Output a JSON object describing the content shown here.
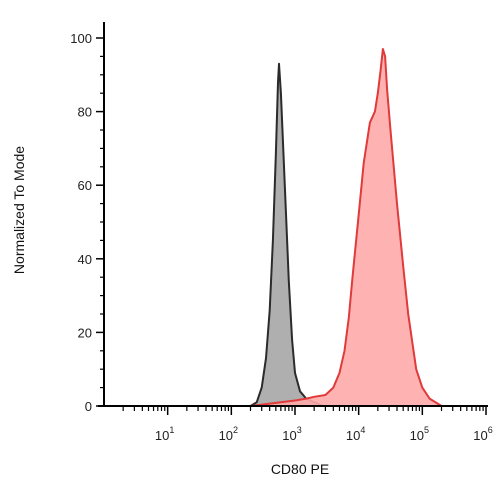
{
  "chart_data": {
    "type": "area",
    "title": "",
    "xlabel": "CD80 PE",
    "ylabel": "Normalized To Mode",
    "x_scale": "log",
    "xlim": [
      1,
      1000000
    ],
    "ylim": [
      0,
      100
    ],
    "x_ticks": [
      {
        "base": "10",
        "exp": "1",
        "value": 10
      },
      {
        "base": "10",
        "exp": "2",
        "value": 100
      },
      {
        "base": "10",
        "exp": "3",
        "value": 1000
      },
      {
        "base": "10",
        "exp": "4",
        "value": 10000
      },
      {
        "base": "10",
        "exp": "5",
        "value": 100000
      },
      {
        "base": "10",
        "exp": "6",
        "value": 1000000
      }
    ],
    "y_ticks": [
      {
        "label": "0",
        "value": 0
      },
      {
        "label": "20",
        "value": 20
      },
      {
        "label": "40",
        "value": 40
      },
      {
        "label": "60",
        "value": 60
      },
      {
        "label": "80",
        "value": 80
      },
      {
        "label": "100",
        "value": 100
      }
    ],
    "grid": false,
    "legend": "none",
    "series": [
      {
        "fill": "#a6a6a6",
        "stroke": "#2b2b2b",
        "points": [
          [
            200,
            0
          ],
          [
            250,
            1
          ],
          [
            300,
            5
          ],
          [
            350,
            13
          ],
          [
            400,
            26
          ],
          [
            450,
            45
          ],
          [
            500,
            68
          ],
          [
            540,
            88
          ],
          [
            560,
            93
          ],
          [
            600,
            85
          ],
          [
            700,
            58
          ],
          [
            800,
            34
          ],
          [
            900,
            18
          ],
          [
            1000,
            9
          ],
          [
            1200,
            4
          ],
          [
            1500,
            2
          ],
          [
            2000,
            1
          ],
          [
            2800,
            0
          ]
        ]
      },
      {
        "fill": "#ffaaaa",
        "stroke": "#e03a3a",
        "points": [
          [
            200,
            0
          ],
          [
            600,
            1
          ],
          [
            1000,
            1.5
          ],
          [
            1500,
            2
          ],
          [
            2000,
            2.5
          ],
          [
            3000,
            3
          ],
          [
            4000,
            5
          ],
          [
            5000,
            9
          ],
          [
            6000,
            15
          ],
          [
            7000,
            24
          ],
          [
            8000,
            35
          ],
          [
            10000,
            52
          ],
          [
            12000,
            66
          ],
          [
            15000,
            77
          ],
          [
            18000,
            80
          ],
          [
            20000,
            85
          ],
          [
            22000,
            91
          ],
          [
            24000,
            97
          ],
          [
            26000,
            95
          ],
          [
            28000,
            86
          ],
          [
            32000,
            74
          ],
          [
            40000,
            55
          ],
          [
            50000,
            38
          ],
          [
            60000,
            25
          ],
          [
            80000,
            10
          ],
          [
            100000,
            5
          ],
          [
            130000,
            2
          ],
          [
            200000,
            0
          ]
        ]
      }
    ]
  }
}
